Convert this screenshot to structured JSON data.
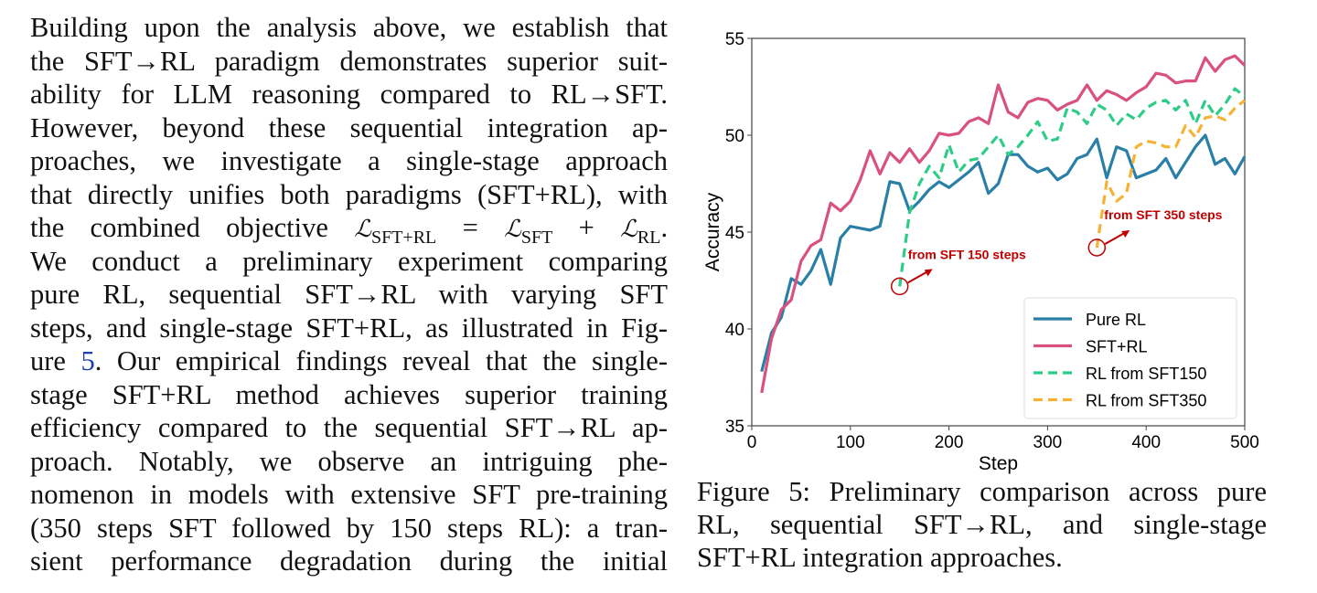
{
  "body_text": {
    "lines": [
      "Building upon the analysis above, we establish that",
      "the SFT→RL paradigm demonstrates superior suit-",
      "ability for LLM reasoning compared to RL→SFT.",
      "However, beyond these sequential integration ap-",
      "proaches, we investigate a single-stage approach",
      "that directly unifies both paradigms (SFT+RL), with"
    ],
    "math_line": {
      "prefix": "the combined objective",
      "L": "ℒ",
      "sub1": "SFT+RL",
      "eq": "=",
      "sub2": "SFT",
      "plus": "+",
      "sub3": "RL",
      "end": "."
    },
    "lines2": [
      "We conduct a preliminary experiment comparing",
      "pure RL, sequential SFT→RL with varying SFT",
      "steps, and single-stage SFT+RL, as illustrated in Fig-"
    ],
    "ref_line": {
      "pre": "ure ",
      "ref": "5",
      "post": ". Our empirical findings reveal that the single-"
    },
    "lines3": [
      "stage SFT+RL method achieves superior training",
      "efficiency compared to the sequential SFT→RL ap-",
      "proach.  Notably, we observe an intriguing phe-",
      "nomenon in models with extensive SFT pre-training",
      "(350 steps SFT followed by 150 steps RL): a tran-",
      "sient performance degradation during the initial"
    ]
  },
  "caption": {
    "lines": [
      "Figure 5: Preliminary comparison across pure",
      "RL, sequential SFT→RL, and single-stage",
      "SFT+RL integration approaches."
    ]
  },
  "chart_data": {
    "type": "line",
    "xlabel": "Step",
    "ylabel": "Accuracy",
    "xlim": [
      0,
      500
    ],
    "ylim": [
      35,
      55
    ],
    "xticks": [
      0,
      100,
      200,
      300,
      400,
      500
    ],
    "yticks": [
      35,
      40,
      45,
      50,
      55
    ],
    "grid": false,
    "legend_placement": "bottom-right",
    "annotations": [
      {
        "text": "from SFT 150 steps",
        "x": 150,
        "y": 42.2,
        "color": "#c00000"
      },
      {
        "text": "from SFT 350 steps",
        "x": 350,
        "y": 44.2,
        "color": "#c00000"
      }
    ],
    "series": [
      {
        "name": "Pure RL",
        "color": "#2a7fa6",
        "dash": false,
        "x_start": 10,
        "x_step": 10,
        "values": [
          37.8,
          39.8,
          40.6,
          42.6,
          42.3,
          43.0,
          44.1,
          42.3,
          44.7,
          45.3,
          45.2,
          45.1,
          45.3,
          47.6,
          47.5,
          46.1,
          46.6,
          47.2,
          47.6,
          47.3,
          47.7,
          48.1,
          48.6,
          47.0,
          47.5,
          49.0,
          49.0,
          48.4,
          48.1,
          48.3,
          47.7,
          48.0,
          48.8,
          49.0,
          49.8,
          47.8,
          49.4,
          49.2,
          47.8,
          48.0,
          48.2,
          48.8,
          47.8,
          48.6,
          49.4,
          50.0,
          48.5,
          48.8,
          48.0,
          48.9
        ]
      },
      {
        "name": "SFT+RL",
        "color": "#d9527f",
        "dash": false,
        "x_start": 10,
        "x_step": 10,
        "values": [
          36.7,
          39.5,
          41.0,
          41.5,
          43.5,
          44.3,
          44.6,
          46.5,
          46.1,
          46.6,
          47.7,
          49.2,
          48.0,
          49.1,
          48.6,
          49.3,
          48.6,
          49.2,
          50.1,
          50.0,
          50.1,
          50.7,
          50.9,
          50.6,
          52.6,
          51.2,
          50.9,
          51.7,
          51.9,
          51.8,
          51.3,
          51.6,
          51.8,
          52.6,
          51.8,
          52.3,
          52.1,
          51.8,
          52.2,
          52.5,
          53.2,
          53.1,
          52.7,
          52.8,
          52.8,
          54.0,
          53.3,
          53.9,
          54.1,
          53.6
        ]
      },
      {
        "name": "RL from SFT150",
        "color": "#2ecc87",
        "dash": true,
        "x_start": 150,
        "x_step": 10,
        "values": [
          42.2,
          46.0,
          47.5,
          48.4,
          47.8,
          49.5,
          48.1,
          48.7,
          48.8,
          49.4,
          50.0,
          49.0,
          49.4,
          50.0,
          50.7,
          49.7,
          49.8,
          51.4,
          51.2,
          50.6,
          51.6,
          51.3,
          50.5,
          51.1,
          50.8,
          51.4,
          51.7,
          51.8,
          51.3,
          51.8,
          50.6,
          51.8,
          51.0,
          51.6,
          52.4,
          52.0
        ]
      },
      {
        "name": "RL from SFT350",
        "color": "#f5b335",
        "dash": true,
        "x_start": 350,
        "x_step": 10,
        "values": [
          44.2,
          47.6,
          46.6,
          47.0,
          49.4,
          49.7,
          49.6,
          49.4,
          49.4,
          50.5,
          49.9,
          50.9,
          51.0,
          50.8,
          51.4,
          51.8
        ]
      }
    ]
  }
}
